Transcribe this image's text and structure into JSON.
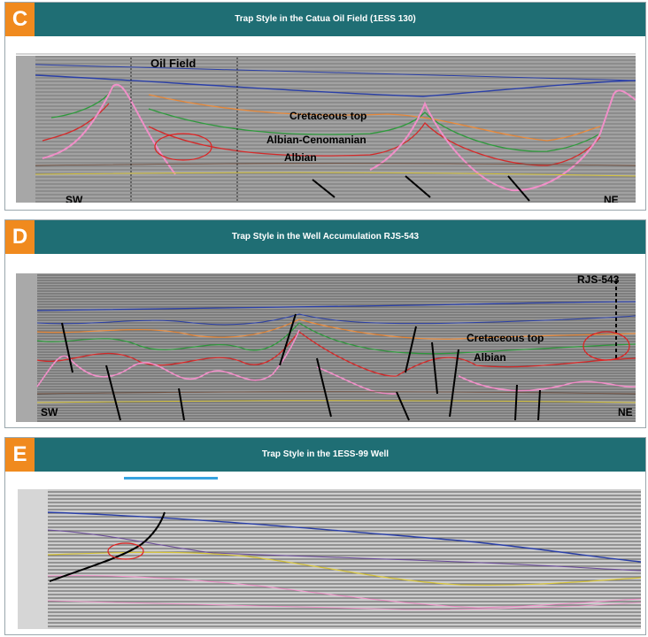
{
  "panels": [
    {
      "badge": "C",
      "title": "Trap Style in the Catua Oil Field (1ESS 130)",
      "labels": {
        "oil_field": "Oil Field",
        "cretaceous_top": "Cretaceous top",
        "albian_cenomanian": "Albian-Cenomanian",
        "albian": "Albian",
        "sw": "SW",
        "ne": "NE"
      },
      "colors": {
        "header": "#1f6e74",
        "badge": "#f08a1e"
      }
    },
    {
      "badge": "D",
      "title": "Trap Style in the Well Accumulation RJS-543",
      "labels": {
        "well": "RJS-543",
        "cretaceous_top": "Cretaceous top",
        "albian": "Albian",
        "sw": "SW",
        "ne": "NE"
      }
    },
    {
      "badge": "E",
      "title": "Trap Style in the 1ESS-99 Well"
    }
  ],
  "horizon_colors": {
    "blue": "#2a3fa8",
    "orange": "#e8893a",
    "green": "#2e9a3c",
    "red": "#d42a2a",
    "pink": "#f08fc8",
    "yellow": "#d7c43a",
    "black": "#111111"
  }
}
